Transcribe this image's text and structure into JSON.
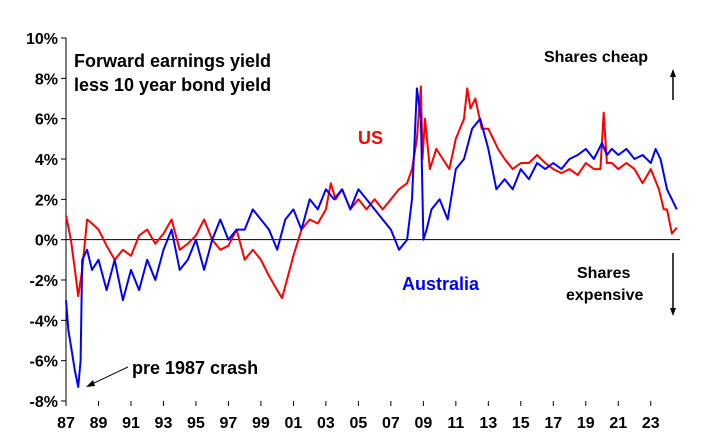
{
  "chart_data": {
    "type": "line",
    "title_line1": "Forward earnings yield",
    "title_line2": "less 10 year bond yield",
    "xlabel": "",
    "ylabel": "",
    "x_range": [
      1987,
      2024.8
    ],
    "ylim": [
      -8,
      10
    ],
    "y_ticks": [
      -8,
      -6,
      -4,
      -2,
      0,
      2,
      4,
      6,
      8,
      10
    ],
    "y_tick_labels": [
      "-8%",
      "-6%",
      "-4%",
      "-2%",
      "0%",
      "2%",
      "4%",
      "6%",
      "8%",
      "10%"
    ],
    "x_ticks": [
      1987,
      1989,
      1991,
      1993,
      1995,
      1997,
      1999,
      2001,
      2003,
      2005,
      2007,
      2009,
      2011,
      2013,
      2015,
      2017,
      2019,
      2021,
      2023
    ],
    "x_tick_labels": [
      "87",
      "89",
      "91",
      "93",
      "95",
      "97",
      "99",
      "01",
      "03",
      "05",
      "07",
      "09",
      "11",
      "13",
      "15",
      "17",
      "19",
      "21",
      "23"
    ],
    "grid": false,
    "series": [
      {
        "name": "US",
        "color": "#ff0000",
        "x": [
          1987.0,
          1987.3,
          1987.6,
          1987.75,
          1988.0,
          1988.3,
          1988.6,
          1989.0,
          1989.5,
          1990.0,
          1990.5,
          1991.0,
          1991.5,
          1992.0,
          1992.5,
          1993.0,
          1993.5,
          1994.0,
          1994.5,
          1995.0,
          1995.5,
          1996.0,
          1996.5,
          1997.0,
          1997.5,
          1998.0,
          1998.5,
          1999.0,
          1999.5,
          2000.0,
          2000.3,
          2000.6,
          2001.0,
          2001.5,
          2002.0,
          2002.5,
          2003.0,
          2003.3,
          2003.6,
          2004.0,
          2004.5,
          2005.0,
          2005.5,
          2006.0,
          2006.5,
          2007.0,
          2007.5,
          2008.0,
          2008.3,
          2008.6,
          2008.85,
          2008.95,
          2009.1,
          2009.4,
          2009.8,
          2010.2,
          2010.6,
          2011.0,
          2011.5,
          2011.7,
          2011.9,
          2012.2,
          2012.6,
          2013.0,
          2013.3,
          2013.6,
          2014.0,
          2014.5,
          2015.0,
          2015.5,
          2016.0,
          2016.5,
          2017.0,
          2017.5,
          2018.0,
          2018.5,
          2019.0,
          2019.5,
          2019.9,
          2020.1,
          2020.3,
          2020.6,
          2021.0,
          2021.5,
          2022.0,
          2022.5,
          2023.0,
          2023.5,
          2023.8,
          2024.0,
          2024.3,
          2024.6
        ],
        "values": [
          1.2,
          0.0,
          -1.8,
          -2.8,
          -1.5,
          1.0,
          0.8,
          0.5,
          -0.3,
          -1.0,
          -0.5,
          -0.8,
          0.2,
          0.5,
          -0.2,
          0.3,
          1.0,
          -0.5,
          -0.2,
          0.2,
          1.0,
          0.0,
          -0.5,
          -0.3,
          0.5,
          -1.0,
          -0.5,
          -1.0,
          -1.8,
          -2.5,
          -2.9,
          -2.0,
          -0.8,
          0.5,
          1.0,
          0.8,
          1.5,
          2.8,
          2.0,
          2.5,
          1.5,
          2.0,
          1.5,
          2.0,
          1.5,
          2.0,
          2.5,
          2.8,
          3.5,
          5.0,
          7.6,
          4.0,
          6.0,
          3.5,
          4.5,
          4.0,
          3.5,
          5.0,
          6.0,
          7.5,
          6.5,
          7.0,
          5.5,
          5.5,
          5.0,
          4.5,
          4.0,
          3.5,
          3.8,
          3.8,
          4.2,
          3.8,
          3.5,
          3.3,
          3.5,
          3.2,
          3.8,
          3.5,
          3.5,
          6.3,
          3.8,
          3.8,
          3.5,
          3.8,
          3.5,
          2.8,
          3.5,
          2.5,
          1.5,
          1.5,
          0.3,
          0.6
        ]
      },
      {
        "name": "Australia",
        "color": "#0000ff",
        "x": [
          1987.0,
          1987.15,
          1987.35,
          1987.55,
          1987.75,
          1987.9,
          1988.0,
          1988.3,
          1988.6,
          1989.0,
          1989.5,
          1990.0,
          1990.5,
          1991.0,
          1991.5,
          1992.0,
          1992.5,
          1993.0,
          1993.5,
          1994.0,
          1994.5,
          1995.0,
          1995.5,
          1996.0,
          1996.5,
          1997.0,
          1997.5,
          1998.0,
          1998.5,
          1999.0,
          1999.5,
          2000.0,
          2000.5,
          2001.0,
          2001.5,
          2002.0,
          2002.5,
          2003.0,
          2003.5,
          2004.0,
          2004.5,
          2005.0,
          2005.5,
          2006.0,
          2006.5,
          2007.0,
          2007.5,
          2008.0,
          2008.3,
          2008.6,
          2008.85,
          2009.0,
          2009.2,
          2009.5,
          2010.0,
          2010.5,
          2011.0,
          2011.5,
          2012.0,
          2012.5,
          2013.0,
          2013.5,
          2014.0,
          2014.5,
          2015.0,
          2015.5,
          2016.0,
          2016.5,
          2017.0,
          2017.5,
          2018.0,
          2018.5,
          2019.0,
          2019.5,
          2020.0,
          2020.3,
          2020.6,
          2021.0,
          2021.5,
          2022.0,
          2022.5,
          2023.0,
          2023.3,
          2023.6,
          2024.0,
          2024.3,
          2024.6
        ],
        "values": [
          -3.0,
          -4.5,
          -5.5,
          -6.5,
          -7.3,
          -6.0,
          -1.0,
          -0.5,
          -1.5,
          -1.0,
          -2.5,
          -1.0,
          -3.0,
          -1.5,
          -2.5,
          -1.0,
          -2.0,
          -0.5,
          0.5,
          -1.5,
          -1.0,
          0.0,
          -1.5,
          0.0,
          1.0,
          0.0,
          0.5,
          0.5,
          1.5,
          1.0,
          0.5,
          -0.5,
          1.0,
          1.5,
          0.5,
          2.0,
          1.5,
          2.5,
          2.0,
          2.5,
          1.5,
          2.5,
          2.0,
          1.5,
          1.0,
          0.5,
          -0.5,
          0.0,
          2.0,
          7.5,
          6.0,
          0.0,
          0.5,
          1.5,
          2.0,
          1.0,
          3.5,
          4.0,
          5.5,
          6.0,
          4.5,
          2.5,
          3.0,
          2.5,
          3.5,
          3.0,
          3.8,
          3.5,
          3.8,
          3.5,
          4.0,
          4.2,
          4.5,
          4.0,
          4.8,
          4.2,
          4.5,
          4.2,
          4.5,
          4.0,
          4.2,
          3.8,
          4.5,
          4.0,
          2.5,
          2.0,
          1.5
        ]
      }
    ],
    "annotations": {
      "us_label": "US",
      "australia_label": "Australia",
      "shares_cheap": "Shares cheap",
      "shares_expensive_line1": "Shares",
      "shares_expensive_line2": "expensive",
      "crash_label": "pre 1987 crash"
    }
  }
}
